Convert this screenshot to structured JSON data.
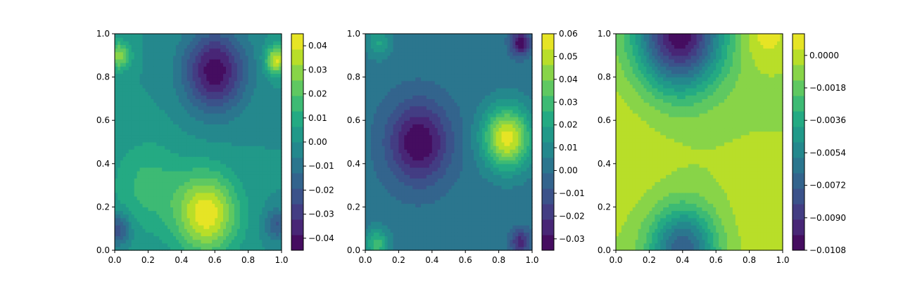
{
  "chart_data": [
    {
      "type": "contour",
      "title": "",
      "xlabel": "",
      "ylabel": "",
      "xlim": [
        0,
        1
      ],
      "ylim": [
        0,
        1
      ],
      "x_ticks": [
        "0.0",
        "0.2",
        "0.4",
        "0.6",
        "0.8",
        "1.0"
      ],
      "y_ticks": [
        "0.0",
        "0.2",
        "0.4",
        "0.6",
        "0.8",
        "1.0"
      ],
      "colormap": "viridis",
      "color_range": [
        -0.045,
        0.045
      ],
      "colorbar_ticks": [
        "−0.04",
        "−0.03",
        "−0.02",
        "−0.01",
        "0.00",
        "0.01",
        "0.02",
        "0.03",
        "0.04"
      ],
      "colorbar_tick_values": [
        -0.04,
        -0.03,
        -0.02,
        -0.01,
        0.0,
        0.01,
        0.02,
        0.03,
        0.04
      ],
      "field_features": [
        {
          "x": 0.6,
          "y": 0.83,
          "value": -0.043,
          "spread": 0.13
        },
        {
          "x": 0.55,
          "y": 0.17,
          "value": 0.043,
          "spread": 0.13
        },
        {
          "x": 0.03,
          "y": 0.9,
          "value": 0.03,
          "spread": 0.045
        },
        {
          "x": 0.97,
          "y": 0.88,
          "value": 0.04,
          "spread": 0.045
        },
        {
          "x": 0.97,
          "y": 0.12,
          "value": -0.02,
          "spread": 0.05
        },
        {
          "x": 0.02,
          "y": 0.1,
          "value": -0.025,
          "spread": 0.05
        },
        {
          "x": 0.2,
          "y": 0.3,
          "value": 0.015,
          "spread": 0.15
        }
      ]
    },
    {
      "type": "contour",
      "title": "",
      "xlabel": "",
      "ylabel": "",
      "xlim": [
        0,
        1
      ],
      "ylim": [
        0,
        1
      ],
      "x_ticks": [
        "0.0",
        "0.2",
        "0.4",
        "0.6",
        "0.8",
        "1.0"
      ],
      "y_ticks": [
        "0.0",
        "0.2",
        "0.4",
        "0.6",
        "0.8",
        "1.0"
      ],
      "colormap": "viridis",
      "color_range": [
        -0.035,
        0.06
      ],
      "colorbar_ticks": [
        "−0.03",
        "−0.02",
        "−0.01",
        "0.00",
        "0.01",
        "0.02",
        "0.03",
        "0.04",
        "0.05",
        "0.06"
      ],
      "colorbar_tick_values": [
        -0.03,
        -0.02,
        -0.01,
        0.0,
        0.01,
        0.02,
        0.03,
        0.04,
        0.05,
        0.06
      ],
      "field_features": [
        {
          "x": 0.32,
          "y": 0.5,
          "value": -0.035,
          "spread": 0.13
        },
        {
          "x": 0.85,
          "y": 0.52,
          "value": 0.057,
          "spread": 0.1
        },
        {
          "x": 0.93,
          "y": 0.96,
          "value": -0.035,
          "spread": 0.04
        },
        {
          "x": 0.07,
          "y": 0.03,
          "value": 0.03,
          "spread": 0.05
        },
        {
          "x": 0.93,
          "y": 0.04,
          "value": -0.025,
          "spread": 0.04
        },
        {
          "x": 0.08,
          "y": 0.96,
          "value": 0.02,
          "spread": 0.05
        }
      ]
    },
    {
      "type": "contour",
      "title": "",
      "xlabel": "",
      "ylabel": "",
      "xlim": [
        0,
        1
      ],
      "ylim": [
        0,
        1
      ],
      "x_ticks": [
        "0.0",
        "0.2",
        "0.4",
        "0.6",
        "0.8",
        "1.0"
      ],
      "y_ticks": [
        "0.0",
        "0.2",
        "0.4",
        "0.6",
        "0.8",
        "1.0"
      ],
      "colormap": "viridis",
      "color_range": [
        -0.0108,
        0.0012
      ],
      "colorbar_ticks": [
        "0.0000",
        "−0.0018",
        "−0.0036",
        "−0.0054",
        "−0.0072",
        "−0.0090",
        "−0.0108"
      ],
      "colorbar_tick_values": [
        0.0,
        -0.0018,
        -0.0036,
        -0.0054,
        -0.0072,
        -0.009,
        -0.0108
      ],
      "field_features": [
        {
          "x": 0.38,
          "y": 1.0,
          "value": -0.0108,
          "spread": 0.18
        },
        {
          "x": 0.4,
          "y": 0.0,
          "value": -0.0075,
          "spread": 0.14
        },
        {
          "x": 0.0,
          "y": 0.5,
          "value": 0.0,
          "spread": 0.35
        },
        {
          "x": 0.9,
          "y": 1.0,
          "value": 0.0008,
          "spread": 0.1
        },
        {
          "x": 0.95,
          "y": 0.15,
          "value": 0.0,
          "spread": 0.25
        }
      ]
    }
  ]
}
